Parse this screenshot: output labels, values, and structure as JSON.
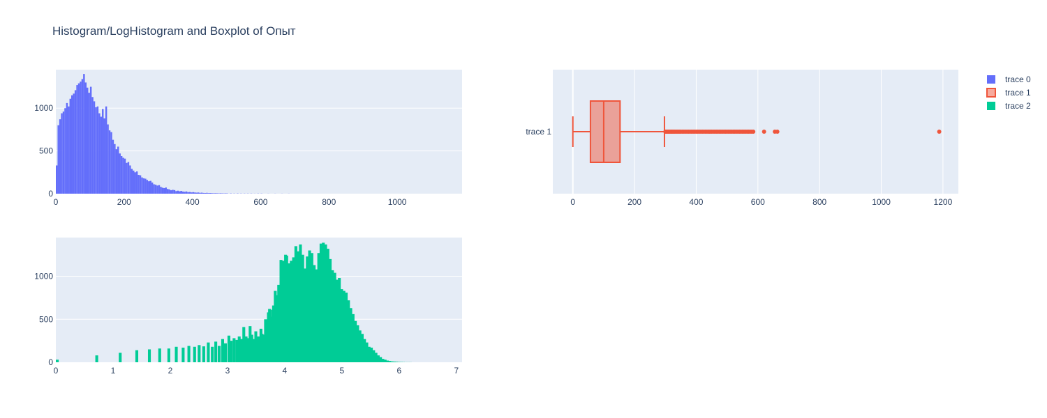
{
  "figure": {
    "title": "Histogram/LogHistogram and Boxplot of Опыт"
  },
  "colors": {
    "plot_bg": "#e5ecf6",
    "grid": "#ffffff",
    "text": "#2a3f5f",
    "trace0": "#636efa",
    "trace1": "#ef553b",
    "trace1_fill": "rgba(239,85,59,0.5)",
    "trace2": "#00cc96"
  },
  "legend": {
    "placement": "top-right",
    "items": [
      {
        "name": "trace 0",
        "color": "#636efa",
        "kind": "bar"
      },
      {
        "name": "trace 1",
        "color": "#ef553b",
        "kind": "box"
      },
      {
        "name": "trace 2",
        "color": "#00cc96",
        "kind": "bar"
      }
    ]
  },
  "chart_data": [
    {
      "type": "bar",
      "name": "trace 0",
      "series_label": "trace 0",
      "xlim": [
        0,
        1190
      ],
      "ylim": [
        0,
        1450
      ],
      "x_ticks": [
        0,
        200,
        400,
        600,
        800,
        1000
      ],
      "x_tick_labels": [
        "0",
        "200",
        "400",
        "600",
        "800",
        "1000"
      ],
      "y_ticks": [
        0,
        500,
        1000
      ],
      "y_tick_labels": [
        "0",
        "500",
        "1000"
      ],
      "grid": true,
      "bin_width": 5,
      "bin_starts": [
        0,
        5,
        10,
        15,
        20,
        25,
        30,
        35,
        40,
        45,
        50,
        55,
        60,
        65,
        70,
        75,
        80,
        85,
        90,
        95,
        100,
        105,
        110,
        115,
        120,
        125,
        130,
        135,
        140,
        145,
        150,
        155,
        160,
        165,
        170,
        175,
        180,
        185,
        190,
        195,
        200,
        205,
        210,
        215,
        220,
        225,
        230,
        235,
        240,
        245,
        250,
        255,
        260,
        265,
        270,
        275,
        280,
        285,
        290,
        295,
        300,
        305,
        310,
        315,
        320,
        325,
        330,
        335,
        340,
        345,
        350,
        355,
        360,
        365,
        370,
        375,
        380,
        385,
        390,
        395,
        400,
        405,
        410,
        415,
        420,
        425,
        430,
        435,
        440,
        445,
        450,
        455,
        460,
        465,
        470,
        475,
        480,
        485,
        490,
        495,
        500,
        510,
        520,
        530,
        540,
        550,
        560,
        570,
        580,
        590,
        600,
        620,
        640,
        660,
        680
      ],
      "values": [
        330,
        800,
        870,
        940,
        960,
        1000,
        1060,
        1020,
        1110,
        1150,
        1170,
        1210,
        1270,
        1290,
        1310,
        1340,
        1400,
        1300,
        1240,
        1180,
        1250,
        1130,
        1080,
        1010,
        1020,
        940,
        900,
        990,
        880,
        1020,
        810,
        740,
        720,
        630,
        580,
        520,
        550,
        470,
        440,
        420,
        410,
        360,
        370,
        330,
        290,
        270,
        250,
        260,
        220,
        215,
        190,
        180,
        175,
        160,
        145,
        150,
        130,
        110,
        105,
        95,
        100,
        80,
        70,
        65,
        72,
        55,
        50,
        40,
        45,
        42,
        30,
        35,
        28,
        32,
        25,
        22,
        26,
        18,
        20,
        15,
        18,
        14,
        12,
        14,
        10,
        12,
        9,
        8,
        10,
        7,
        8,
        6,
        5,
        6,
        5,
        4,
        5,
        4,
        3,
        4,
        3,
        3,
        2,
        3,
        2,
        2,
        2,
        2,
        1,
        2,
        2,
        1,
        1,
        1,
        1
      ]
    },
    {
      "type": "box",
      "name": "trace 1",
      "series_label": "trace 1",
      "orientation": "horizontal",
      "category_label": "trace 1",
      "xlim": [
        -65,
        1250
      ],
      "x_ticks": [
        0,
        200,
        400,
        600,
        800,
        1000,
        1200
      ],
      "x_tick_labels": [
        "0",
        "200",
        "400",
        "600",
        "800",
        "1000",
        "1200"
      ],
      "grid": true,
      "min": 0,
      "q1": 57,
      "median": 100,
      "q3": 153,
      "upper_fence": 297,
      "outliers": [
        300,
        303,
        306,
        309,
        312,
        315,
        318,
        321,
        324,
        327,
        330,
        334,
        338,
        342,
        346,
        350,
        355,
        360,
        365,
        370,
        375,
        380,
        385,
        390,
        395,
        400,
        405,
        410,
        415,
        420,
        425,
        430,
        435,
        440,
        445,
        450,
        455,
        460,
        465,
        470,
        475,
        480,
        485,
        490,
        495,
        500,
        505,
        510,
        515,
        520,
        525,
        530,
        535,
        540,
        545,
        550,
        555,
        560,
        565,
        570,
        575,
        580,
        585,
        620,
        655,
        663,
        1188
      ]
    },
    {
      "type": "bar",
      "name": "trace 2",
      "series_label": "trace 2",
      "xlim": [
        0,
        7.1
      ],
      "ylim": [
        0,
        1450
      ],
      "x_ticks": [
        0,
        1,
        2,
        3,
        4,
        5,
        6,
        7
      ],
      "x_tick_labels": [
        "0",
        "1",
        "2",
        "3",
        "4",
        "5",
        "6",
        "7"
      ],
      "y_ticks": [
        0,
        500,
        1000
      ],
      "y_tick_labels": [
        "0",
        "500",
        "1000"
      ],
      "grid": true,
      "bin_width": 0.05,
      "x": [
        0,
        0.69,
        1.1,
        1.39,
        1.61,
        1.79,
        1.95,
        2.08,
        2.2,
        2.3,
        2.4,
        2.48,
        2.56,
        2.64,
        2.71,
        2.77,
        2.83,
        2.89,
        2.94,
        3.0,
        3.04,
        3.09,
        3.14,
        3.18,
        3.22,
        3.26,
        3.3,
        3.33,
        3.37,
        3.4,
        3.44,
        3.47,
        3.5,
        3.53,
        3.56,
        3.58,
        3.61,
        3.64,
        3.66,
        3.69,
        3.71,
        3.74,
        3.76,
        3.78,
        3.81,
        3.83,
        3.85,
        3.87,
        3.89,
        3.91,
        3.93,
        3.95,
        3.97,
        3.99,
        4.01,
        4.03,
        4.05,
        4.09,
        4.13,
        4.17,
        4.21,
        4.25,
        4.29,
        4.33,
        4.37,
        4.41,
        4.45,
        4.49,
        4.53,
        4.57,
        4.61,
        4.65,
        4.69,
        4.73,
        4.77,
        4.81,
        4.85,
        4.89,
        4.93,
        4.97,
        5.01,
        5.05,
        5.09,
        5.13,
        5.17,
        5.21,
        5.25,
        5.29,
        5.33,
        5.37,
        5.41,
        5.45,
        5.49,
        5.53,
        5.57,
        5.61,
        5.65,
        5.69,
        5.73,
        5.77,
        5.81,
        5.85,
        5.89,
        5.93,
        5.97,
        6.01,
        6.05,
        6.09,
        6.13,
        6.17,
        6.21,
        6.25,
        6.29,
        6.33
      ],
      "values": [
        30,
        80,
        110,
        140,
        150,
        160,
        160,
        180,
        170,
        190,
        180,
        200,
        185,
        230,
        180,
        240,
        190,
        270,
        220,
        310,
        250,
        280,
        260,
        300,
        270,
        410,
        300,
        280,
        420,
        320,
        270,
        360,
        300,
        300,
        390,
        330,
        320,
        500,
        480,
        580,
        620,
        530,
        610,
        660,
        830,
        730,
        780,
        900,
        880,
        1190,
        1050,
        1180,
        1110,
        1250,
        1240,
        1040,
        1150,
        1180,
        1220,
        1350,
        1290,
        1370,
        1250,
        1090,
        1230,
        1300,
        1270,
        1130,
        1080,
        1270,
        1380,
        1390,
        1370,
        1320,
        1200,
        1070,
        1040,
        960,
        980,
        850,
        830,
        810,
        720,
        630,
        560,
        480,
        430,
        370,
        330,
        270,
        230,
        180,
        170,
        140,
        110,
        80,
        60,
        40,
        30,
        20,
        15,
        10,
        8,
        6,
        4,
        3,
        2,
        1,
        1,
        1,
        0,
        0,
        0,
        0
      ]
    }
  ]
}
